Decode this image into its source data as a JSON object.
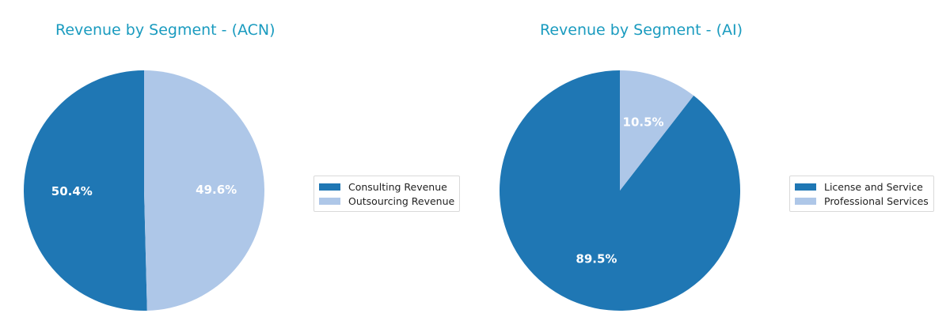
{
  "chart_data": [
    {
      "type": "pie",
      "title": "Revenue by Segment - (ACN)",
      "categories": [
        "Consulting Revenue",
        "Outsourcing Revenue"
      ],
      "values": [
        50.4,
        49.6
      ],
      "labels": [
        "50.4%",
        "49.6%"
      ],
      "colors": [
        "#1f77b4",
        "#aec7e8"
      ],
      "legend_position": "right"
    },
    {
      "type": "pie",
      "title": "Revenue by Segment - (AI)",
      "categories": [
        "License and Service",
        "Professional Services"
      ],
      "values": [
        89.5,
        10.5
      ],
      "labels": [
        "89.5%",
        "10.5%"
      ],
      "colors": [
        "#1f77b4",
        "#aec7e8"
      ],
      "legend_position": "right"
    }
  ]
}
